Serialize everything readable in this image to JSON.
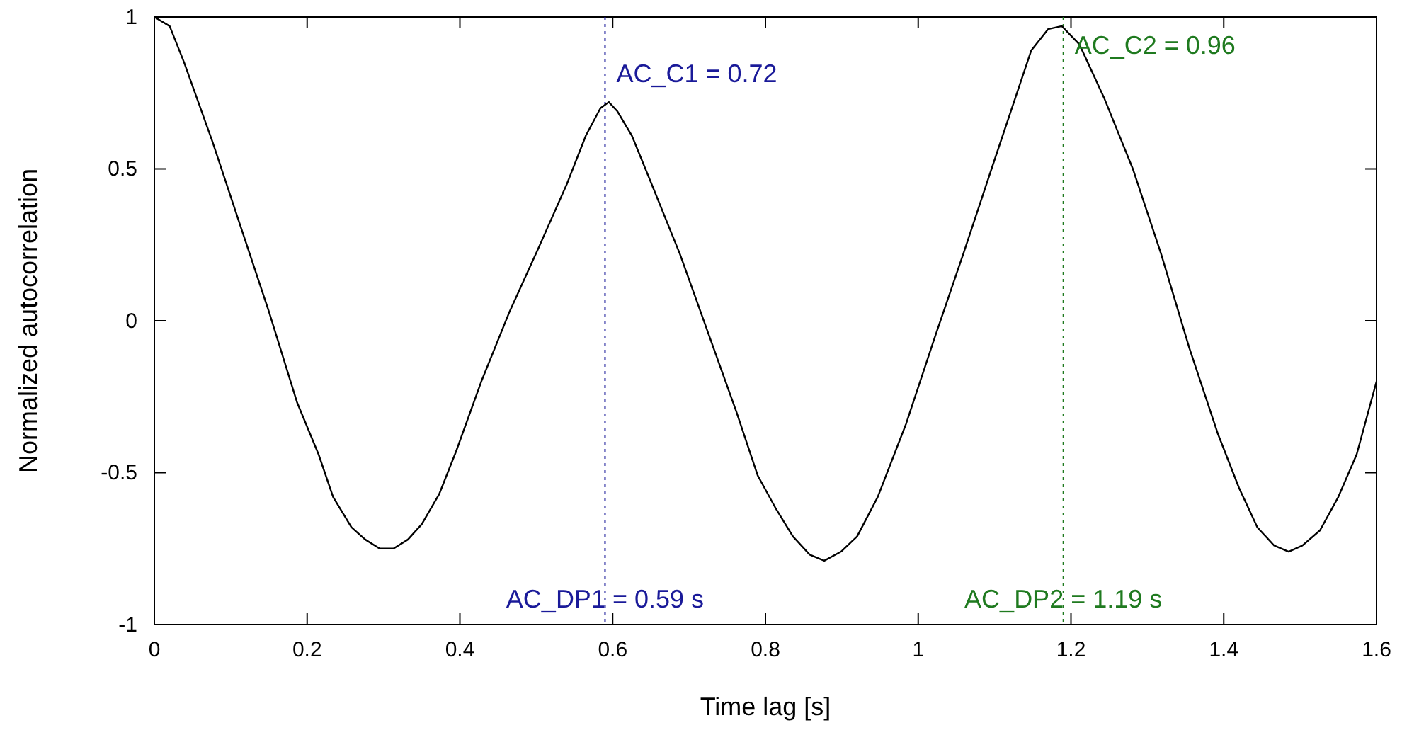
{
  "chart_data": {
    "type": "line",
    "xlabel": "Time lag [s]",
    "ylabel": "Normalized autocorrelation",
    "x": [
      0,
      0.02,
      0.039,
      0.076,
      0.113,
      0.15,
      0.187,
      0.215,
      0.234,
      0.258,
      0.276,
      0.295,
      0.313,
      0.332,
      0.35,
      0.373,
      0.395,
      0.428,
      0.465,
      0.503,
      0.54,
      0.565,
      0.584,
      0.595,
      0.606,
      0.625,
      0.651,
      0.688,
      0.725,
      0.762,
      0.79,
      0.814,
      0.836,
      0.858,
      0.877,
      0.899,
      0.92,
      0.947,
      0.984,
      1.021,
      1.059,
      1.096,
      1.124,
      1.148,
      1.17,
      1.188,
      1.211,
      1.244,
      1.281,
      1.318,
      1.355,
      1.392,
      1.42,
      1.444,
      1.466,
      1.485,
      1.503,
      1.526,
      1.55,
      1.574,
      1.6
    ],
    "series": [
      {
        "color": "#000000",
        "values": [
          1,
          0.97,
          0.85,
          0.59,
          0.31,
          0.03,
          -0.27,
          -0.44,
          -0.58,
          -0.68,
          -0.72,
          -0.75,
          -0.75,
          -0.72,
          -0.67,
          -0.57,
          -0.43,
          -0.2,
          0.03,
          0.24,
          0.45,
          0.61,
          0.7,
          0.72,
          0.69,
          0.61,
          0.45,
          0.22,
          -0.04,
          -0.3,
          -0.51,
          -0.62,
          -0.71,
          -0.77,
          -0.79,
          -0.76,
          -0.71,
          -0.58,
          -0.34,
          -0.06,
          0.22,
          0.5,
          0.71,
          0.89,
          0.96,
          0.97,
          0.91,
          0.73,
          0.5,
          0.22,
          -0.09,
          -0.37,
          -0.55,
          -0.68,
          -0.74,
          -0.76,
          -0.74,
          -0.69,
          -0.58,
          -0.44,
          -0.2
        ]
      }
    ],
    "xlim": [
      0,
      1.6
    ],
    "xticks": [
      0,
      0.2,
      0.4,
      0.6,
      0.8,
      1,
      1.2,
      1.4,
      1.6
    ],
    "ylim": [
      -1,
      1
    ],
    "yticks": [
      -1,
      -0.5,
      0,
      0.5,
      1
    ],
    "grid": false,
    "line_style": "solid",
    "marker": "none",
    "ref_lines": [
      {
        "axis": "x",
        "value": 0.59,
        "label": "AC_DP1 = 0.59 s",
        "color": "#1a1a99",
        "line_style": "dotted"
      },
      {
        "axis": "x",
        "value": 1.19,
        "label": "AC_DP2 = 1.19 s",
        "color": "#1f7a1f",
        "line_style": "dotted"
      }
    ],
    "annotations": [
      {
        "text": "AC_C1 = 0.72",
        "x": 0.59,
        "y": 0.72
      },
      {
        "text": "AC_C2 = 0.96",
        "x": 1.19,
        "y": 0.96
      }
    ]
  }
}
